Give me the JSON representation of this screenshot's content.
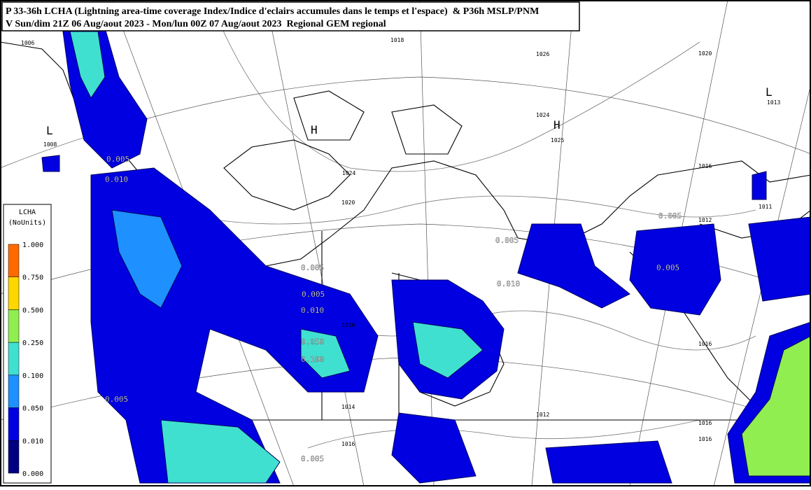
{
  "header": {
    "line1": "P 33-36h LCHA (Lightning area-time coverage Index/Indice d'eclairs accumules dans le temps et l'espace)  & P36h MSLP/PNM",
    "line2": "V Sun/dim 21Z 06 Aug/aout 2023 - Mon/lun 00Z 07 Aug/aout 2023  Regional GEM regional"
  },
  "legend": {
    "title": "LCHA",
    "units": "(NoUnits)",
    "labels": [
      "1.000",
      "0.750",
      "0.500",
      "0.250",
      "0.100",
      "0.050",
      "0.010",
      "0.000"
    ],
    "colors": [
      "#ff6a00",
      "#ffd700",
      "#90ee50",
      "#40e0d0",
      "#1e90ff",
      "#0000e0",
      "#000080"
    ]
  },
  "map": {
    "pressure_labels": [
      "1006",
      "1018",
      "1026",
      "1020",
      "1013",
      "1008",
      "1024",
      "1025",
      "1024",
      "1020",
      "1016",
      "1011",
      "1012",
      "1016",
      "1014",
      "1012",
      "1016",
      "1016",
      "1016",
      "1016"
    ],
    "centres": [
      "H",
      "H",
      "L",
      "L"
    ],
    "contour_labels": [
      "0.005",
      "0.010",
      "0.005",
      "0.005",
      "0.005",
      "0.005",
      "0.010",
      "0.005",
      "0.010",
      "0.050",
      "0.100",
      "0.005",
      "0.005"
    ]
  }
}
